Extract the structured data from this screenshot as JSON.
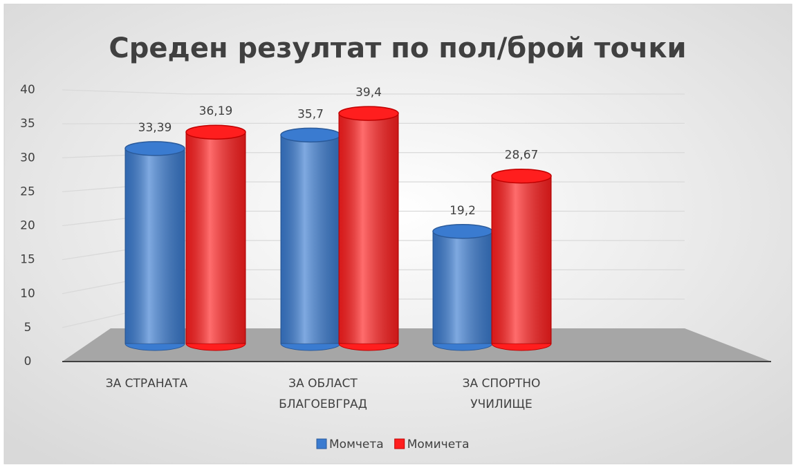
{
  "chart_data": {
    "type": "bar3d",
    "title": "Среден резултат по пол/брой точки",
    "categories": [
      "ЗА СТРАНАТА",
      "ЗА ОБЛАСТ БЛАГОЕВГРАД",
      "ЗА СПОРТНО УЧИЛИЩЕ"
    ],
    "series": [
      {
        "name": "Момчета",
        "color": "#3a7bd0",
        "values": [
          33.39,
          35.7,
          19.2
        ],
        "value_labels": [
          "33,39",
          "35,7",
          "19,2"
        ]
      },
      {
        "name": "Момичета",
        "color": "#ff1e1e",
        "values": [
          36.19,
          39.4,
          28.67
        ],
        "value_labels": [
          "36,19",
          "39,4",
          "28,67"
        ]
      }
    ],
    "ylim": [
      0,
      40
    ],
    "yticks": [
      0,
      5,
      10,
      15,
      20,
      25,
      30,
      35,
      40
    ],
    "grid": true,
    "legend": "bottom"
  }
}
